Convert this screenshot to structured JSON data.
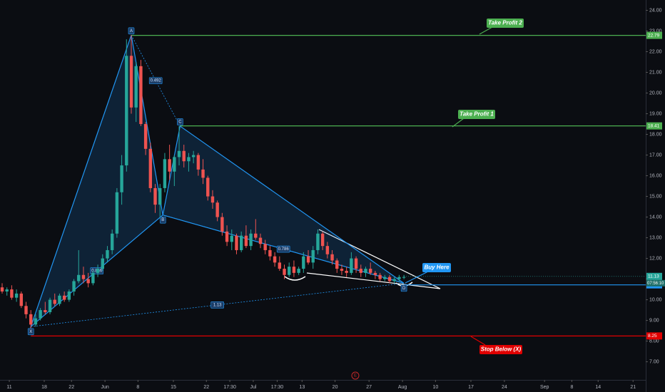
{
  "chart_data": {
    "type": "candlestick",
    "up_color": "#26a69a",
    "down_color": "#ef5350",
    "xlim": [
      0,
      135
    ],
    "xticks": [
      {
        "value": 1.5,
        "label": "11"
      },
      {
        "value": 8.8,
        "label": "18"
      },
      {
        "value": 14.5,
        "label": "22"
      },
      {
        "value": 21.5,
        "label": "Jun"
      },
      {
        "value": 28.4,
        "label": "8"
      },
      {
        "value": 35.8,
        "label": "15"
      },
      {
        "value": 42.7,
        "label": "22"
      },
      {
        "value": 47.6,
        "label": "17:30"
      },
      {
        "value": 52.5,
        "label": "Jul"
      },
      {
        "value": 57.5,
        "label": "17:30"
      },
      {
        "value": 62.7,
        "label": "13"
      },
      {
        "value": 69.6,
        "label": "20"
      },
      {
        "value": 76.7,
        "label": "27"
      },
      {
        "value": 83.7,
        "label": "Aug"
      },
      {
        "value": 90.6,
        "label": "10"
      },
      {
        "value": 98,
        "label": "17"
      },
      {
        "value": 105,
        "label": "24"
      },
      {
        "value": 113.4,
        "label": "Sep"
      },
      {
        "value": 119.1,
        "label": "8"
      },
      {
        "value": 124.6,
        "label": "14"
      },
      {
        "value": 131.9,
        "label": "21"
      }
    ],
    "ylim": [
      6.4,
      24.5
    ],
    "yticks": [
      {
        "value": 7,
        "label": "7.00"
      },
      {
        "value": 8,
        "label": "8.00"
      },
      {
        "value": 9,
        "label": "9.00"
      },
      {
        "value": 10,
        "label": "10.00"
      },
      {
        "value": 11,
        "label": "11.00"
      },
      {
        "value": 12,
        "label": "12.00"
      },
      {
        "value": 13,
        "label": "13.00"
      },
      {
        "value": 14,
        "label": "14.00"
      },
      {
        "value": 15,
        "label": "15.00"
      },
      {
        "value": 16,
        "label": "16.00"
      },
      {
        "value": 17,
        "label": "17.00"
      },
      {
        "value": 18,
        "label": "18.00"
      },
      {
        "value": 19,
        "label": "19.00"
      },
      {
        "value": 20,
        "label": "20.00"
      },
      {
        "value": 21,
        "label": "21.00"
      },
      {
        "value": 22,
        "label": "22.00"
      },
      {
        "value": 23,
        "label": "23.00"
      },
      {
        "value": 24,
        "label": "24.00"
      }
    ],
    "x": [
      0,
      1,
      2,
      3,
      4,
      5,
      6,
      7,
      8,
      9,
      10,
      11,
      12,
      13,
      14,
      15,
      16,
      17,
      18,
      19,
      20,
      21,
      22,
      23,
      24,
      25,
      26,
      27,
      28,
      29,
      30,
      31,
      32,
      33,
      34,
      35,
      36,
      37,
      38,
      39,
      40,
      41,
      42,
      43,
      44,
      45,
      46,
      47,
      48,
      49,
      50,
      51,
      52,
      53,
      54,
      55,
      56,
      57,
      58,
      59,
      60,
      61,
      62,
      63,
      64,
      65,
      66,
      67,
      68,
      69,
      70,
      71,
      72,
      73,
      74,
      75,
      76,
      77,
      78,
      79,
      80,
      81,
      82,
      83,
      84
    ],
    "open": [
      10.6,
      10.4,
      10.5,
      10.1,
      10.3,
      9.7,
      9.3,
      8.8,
      9.1,
      9.5,
      9.4,
      10.0,
      9.8,
      10.2,
      10.0,
      10.4,
      10.9,
      11.2,
      11.0,
      10.8,
      11.3,
      11.5,
      12.0,
      12.4,
      13.2,
      15.2,
      16.5,
      21.8,
      19.3,
      21.3,
      18.5,
      17.3,
      15.4,
      14.6,
      15.4,
      16.8,
      16.2,
      16.9,
      17.2,
      16.7,
      16.9,
      17.0,
      16.3,
      15.9,
      15.0,
      14.7,
      14.0,
      13.3,
      12.8,
      13.1,
      12.4,
      13.1,
      12.6,
      13.2,
      13.0,
      12.7,
      12.4,
      12.1,
      11.8,
      11.5,
      11.2,
      11.6,
      11.3,
      11.5,
      12.1,
      11.8,
      12.4,
      13.2,
      12.6,
      12.2,
      11.9,
      11.5,
      11.4,
      11.3,
      12.0,
      11.5,
      11.3,
      11.5,
      11.3,
      11.2,
      11.0,
      11.1,
      10.9,
      11.0,
      11.1
    ],
    "high": [
      10.8,
      10.6,
      10.7,
      10.5,
      10.4,
      9.9,
      9.5,
      9.3,
      9.6,
      9.9,
      10.1,
      10.3,
      10.3,
      10.4,
      10.5,
      11.0,
      12.4,
      11.6,
      11.3,
      11.4,
      11.7,
      12.2,
      12.6,
      13.4,
      15.4,
      17.0,
      22.6,
      22.8,
      21.5,
      21.6,
      18.6,
      17.6,
      15.6,
      15.6,
      17.1,
      17.5,
      17.0,
      18.4,
      17.5,
      17.1,
      17.2,
      17.1,
      16.8,
      16.0,
      15.3,
      14.8,
      14.2,
      13.6,
      13.4,
      13.2,
      13.3,
      13.6,
      13.4,
      13.9,
      13.2,
      12.9,
      12.6,
      12.3,
      12.1,
      11.7,
      11.8,
      11.9,
      11.6,
      12.3,
      12.4,
      12.6,
      13.4,
      13.3,
      12.8,
      12.4,
      12.0,
      11.7,
      11.6,
      12.3,
      12.1,
      11.7,
      11.6,
      11.8,
      11.4,
      11.3,
      11.2,
      11.2,
      11.1,
      11.2,
      11.2
    ],
    "low": [
      10.3,
      10.2,
      10.0,
      9.9,
      9.6,
      9.1,
      8.6,
      8.7,
      9.0,
      9.3,
      9.3,
      9.7,
      9.7,
      9.9,
      9.9,
      10.2,
      10.8,
      10.8,
      10.6,
      10.7,
      11.1,
      11.4,
      11.8,
      12.2,
      13.0,
      14.6,
      16.2,
      19.0,
      18.6,
      18.4,
      17.0,
      15.2,
      14.2,
      14.0,
      15.2,
      15.8,
      15.5,
      16.5,
      16.4,
      16.2,
      16.6,
      16.0,
      15.6,
      14.8,
      14.4,
      13.8,
      13.1,
      12.6,
      12.4,
      12.2,
      12.3,
      12.5,
      12.4,
      12.9,
      12.5,
      12.2,
      11.9,
      11.6,
      11.4,
      11.0,
      11.1,
      11.1,
      11.2,
      11.3,
      11.7,
      11.5,
      12.2,
      12.4,
      12.0,
      11.7,
      11.3,
      11.2,
      11.1,
      11.2,
      11.3,
      11.1,
      11.1,
      11.2,
      11.0,
      10.9,
      10.9,
      10.8,
      10.8,
      10.9,
      11.0
    ],
    "close": [
      10.4,
      10.5,
      10.1,
      10.3,
      9.7,
      9.3,
      8.8,
      9.1,
      9.5,
      9.4,
      10.0,
      9.8,
      10.2,
      10.0,
      10.4,
      10.9,
      11.2,
      11.0,
      10.8,
      11.3,
      11.5,
      12.0,
      12.4,
      13.2,
      15.2,
      16.5,
      21.8,
      19.3,
      21.3,
      18.5,
      17.3,
      15.4,
      14.6,
      15.4,
      16.8,
      16.2,
      16.9,
      17.2,
      16.7,
      16.9,
      17.0,
      16.3,
      15.9,
      15.0,
      14.7,
      14.0,
      13.3,
      12.8,
      13.1,
      12.4,
      13.1,
      12.6,
      13.2,
      13.0,
      12.7,
      12.4,
      12.1,
      11.8,
      11.5,
      11.2,
      11.6,
      11.3,
      11.5,
      12.1,
      11.8,
      12.4,
      13.2,
      12.6,
      12.2,
      11.9,
      11.5,
      11.4,
      11.3,
      12.0,
      11.5,
      11.3,
      11.5,
      11.3,
      11.2,
      11.0,
      11.1,
      10.9,
      11.0,
      11.1,
      11.1
    ],
    "harmonic": {
      "color": "#2196f3",
      "points": [
        {
          "label": "X",
          "x": 6,
          "price": 8.7
        },
        {
          "label": "A",
          "x": 27,
          "price": 22.8
        },
        {
          "label": "B",
          "x": 33.6,
          "price": 14.1
        },
        {
          "label": "C",
          "x": 37.2,
          "price": 18.4
        },
        {
          "label": "D",
          "x": 84,
          "price": 10.8
        }
      ],
      "ratios": [
        "0.866",
        "0.492",
        "0.786",
        "1.13"
      ]
    },
    "levels": [
      {
        "name": "Take Profit 2",
        "price": 22.79,
        "start_x": 27,
        "color": "#4caf50"
      },
      {
        "name": "Take Profit 1",
        "price": 18.41,
        "start_x": 37.2,
        "color": "#4caf50"
      },
      {
        "name": "Buy Here",
        "price": 10.72,
        "start_x": 84,
        "color": "#2196f3"
      },
      {
        "name": "Stop Below (X)",
        "price": 8.25,
        "start_x": 6,
        "color": "#e00000"
      }
    ],
    "last_price": 11.13,
    "countdown": "07:56:10",
    "earnings_marker": "E"
  }
}
